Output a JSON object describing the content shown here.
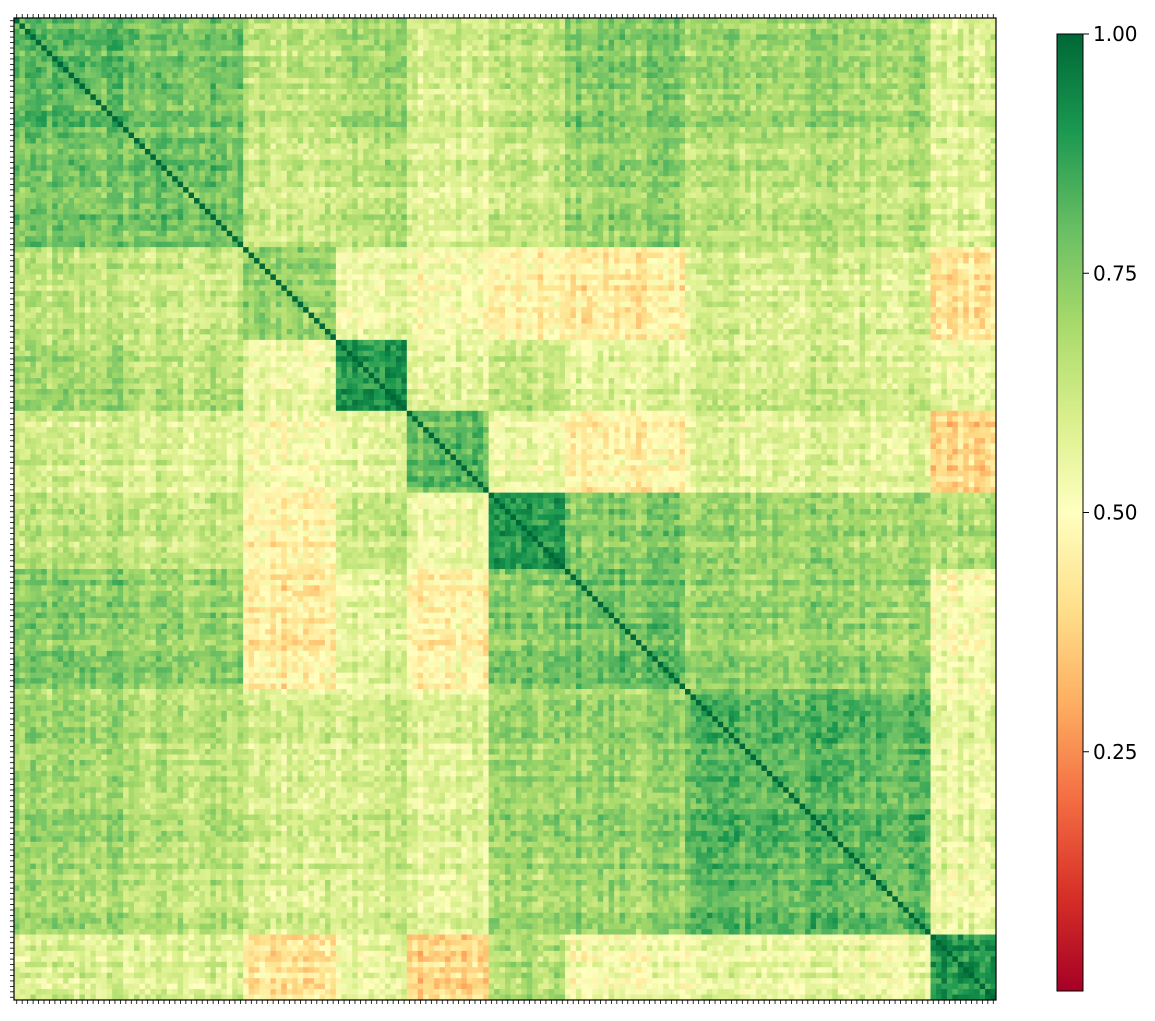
{
  "chart_data": {
    "type": "heatmap",
    "title": "",
    "xlabel": "",
    "ylabel": "",
    "matrix_size": 180,
    "symmetric": true,
    "diagonal_value": 1.0,
    "colormap": {
      "name": "RdYlGn",
      "stops": [
        "#a50026",
        "#d73027",
        "#f46d43",
        "#fdae61",
        "#fee08b",
        "#ffffbf",
        "#d9ef8b",
        "#a6d96a",
        "#66bd63",
        "#1a9850",
        "#006837"
      ]
    },
    "colorbar": {
      "range": [
        0.0,
        1.0
      ],
      "ticks": [
        0.25,
        0.5,
        0.75,
        1.0
      ],
      "tick_labels": [
        "0.25",
        "0.50",
        "0.75",
        "1.00"
      ],
      "location": "right"
    },
    "x_tick_labels_shown": false,
    "y_tick_labels_shown": false,
    "cluster_boundaries": [
      0,
      22,
      42,
      59,
      72,
      87,
      101,
      123,
      168,
      180
    ],
    "cluster_mean_correlation": [
      [
        0.8,
        0.76,
        0.64,
        0.7,
        0.6,
        0.64,
        0.74,
        0.7,
        0.58
      ],
      [
        0.76,
        0.78,
        0.62,
        0.66,
        0.58,
        0.62,
        0.72,
        0.66,
        0.58
      ],
      [
        0.64,
        0.62,
        0.72,
        0.56,
        0.52,
        0.46,
        0.44,
        0.6,
        0.42
      ],
      [
        0.7,
        0.66,
        0.56,
        0.92,
        0.58,
        0.64,
        0.58,
        0.62,
        0.56
      ],
      [
        0.6,
        0.58,
        0.52,
        0.58,
        0.8,
        0.54,
        0.46,
        0.58,
        0.38
      ],
      [
        0.64,
        0.62,
        0.46,
        0.64,
        0.54,
        0.88,
        0.74,
        0.7,
        0.66
      ],
      [
        0.74,
        0.72,
        0.44,
        0.58,
        0.46,
        0.74,
        0.78,
        0.72,
        0.52
      ],
      [
        0.7,
        0.66,
        0.6,
        0.62,
        0.58,
        0.7,
        0.72,
        0.82,
        0.55
      ],
      [
        0.58,
        0.58,
        0.42,
        0.56,
        0.38,
        0.66,
        0.52,
        0.55,
        0.9
      ]
    ]
  }
}
